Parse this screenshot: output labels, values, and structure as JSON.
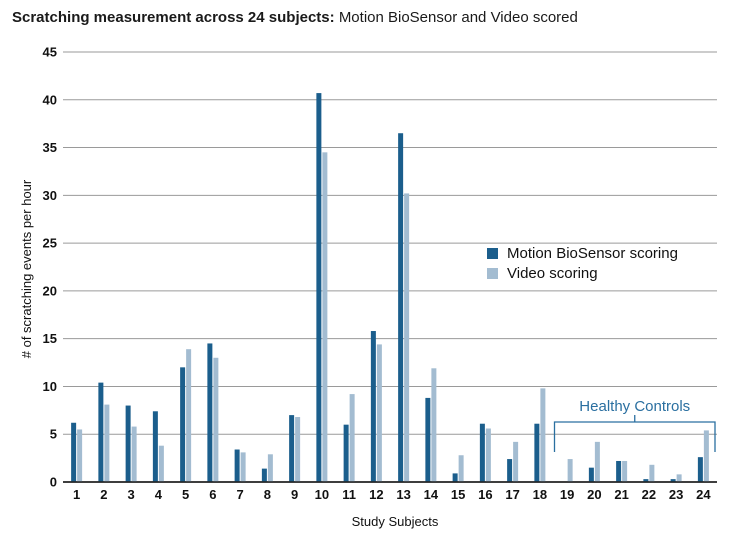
{
  "chart_data": {
    "type": "bar",
    "title_bold": "Scratching measurement across 24 subjects:",
    "title_rest": "Motion BioSensor and Video scored",
    "xlabel": "Study Subjects",
    "ylabel": "# of scratching events per hour",
    "ylim": [
      0,
      45
    ],
    "yticks": [
      "0",
      "5",
      "10",
      "15",
      "20",
      "25",
      "30",
      "35",
      "40",
      "45"
    ],
    "grid": true,
    "legend_position": "center-right",
    "categories": [
      "1",
      "2",
      "3",
      "4",
      "5",
      "6",
      "7",
      "8",
      "9",
      "10",
      "11",
      "12",
      "13",
      "14",
      "15",
      "16",
      "17",
      "18",
      "19",
      "20",
      "21",
      "22",
      "23",
      "24"
    ],
    "series": [
      {
        "name": "Motion BioSensor scoring",
        "color": "#1b5e8c",
        "values": [
          6.2,
          10.4,
          8.0,
          7.4,
          12.0,
          14.5,
          3.4,
          1.4,
          7.0,
          40.7,
          6.0,
          15.8,
          36.5,
          8.8,
          0.9,
          6.1,
          2.4,
          6.1,
          0.0,
          1.5,
          2.2,
          0.3,
          0.3,
          2.6
        ]
      },
      {
        "name": "Video scoring",
        "color": "#a3bcd1",
        "values": [
          5.5,
          8.1,
          5.8,
          3.8,
          13.9,
          13.0,
          3.1,
          2.9,
          6.8,
          34.5,
          9.2,
          14.4,
          30.2,
          11.9,
          2.8,
          5.6,
          4.2,
          9.8,
          2.4,
          4.2,
          2.2,
          1.8,
          0.8,
          5.4
        ]
      }
    ],
    "annotation": {
      "text": "Healthy Controls",
      "from_category": "19",
      "to_category": "24",
      "color": "#2a6fa0"
    }
  }
}
